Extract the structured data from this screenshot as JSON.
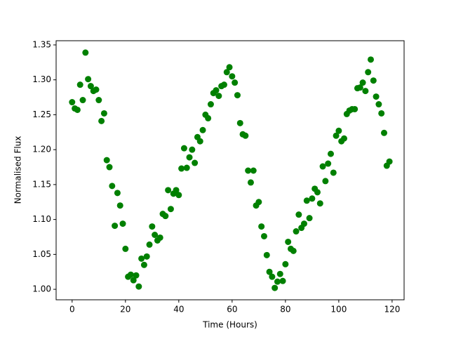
{
  "chart_data": {
    "type": "scatter",
    "xlabel": "Time (Hours)",
    "ylabel": "Normalised Flux",
    "color": "#008000",
    "xlim": [
      -6,
      124.5
    ],
    "ylim": [
      0.985,
      1.356
    ],
    "xticks": [
      0,
      20,
      40,
      60,
      80,
      100,
      120
    ],
    "yticks": [
      {
        "value": 1.0,
        "label": "1.00"
      },
      {
        "value": 1.05,
        "label": "1.05"
      },
      {
        "value": 1.1,
        "label": "1.10"
      },
      {
        "value": 1.15,
        "label": "1.15"
      },
      {
        "value": 1.2,
        "label": "1.20"
      },
      {
        "value": 1.25,
        "label": "1.25"
      },
      {
        "value": 1.3,
        "label": "1.30"
      },
      {
        "value": 1.35,
        "label": "1.35"
      }
    ],
    "x": [
      0,
      1,
      2,
      3,
      4,
      5,
      6,
      7,
      8,
      9,
      10,
      11,
      12,
      13,
      14,
      15,
      16,
      17,
      18,
      19,
      20,
      21,
      22,
      23,
      24,
      25,
      26,
      27,
      28,
      29,
      30,
      31,
      32,
      33,
      34,
      35,
      36,
      37,
      38,
      39,
      40,
      41,
      42,
      43,
      44,
      45,
      46,
      47,
      48,
      49,
      50,
      51,
      52,
      53,
      54,
      55,
      56,
      57,
      58,
      59,
      60,
      61,
      62,
      63,
      64,
      65,
      66,
      67,
      68,
      69,
      70,
      71,
      72,
      73,
      74,
      75,
      76,
      77,
      78,
      79,
      80,
      81,
      82,
      83,
      84,
      85,
      86,
      87,
      88,
      89,
      90,
      91,
      92,
      93,
      94,
      95,
      96,
      97,
      98,
      99,
      100,
      101,
      102,
      103,
      104,
      105,
      106,
      107,
      108,
      109,
      110,
      111,
      112,
      113,
      114,
      115,
      116,
      117,
      118,
      119
    ],
    "values": [
      1.268,
      1.259,
      1.257,
      1.293,
      1.271,
      1.339,
      1.301,
      1.291,
      1.284,
      1.286,
      1.271,
      1.241,
      1.252,
      1.185,
      1.175,
      1.148,
      1.091,
      1.138,
      1.12,
      1.094,
      1.058,
      1.018,
      1.021,
      1.013,
      1.02,
      1.004,
      1.044,
      1.035,
      1.047,
      1.064,
      1.09,
      1.078,
      1.07,
      1.074,
      1.108,
      1.105,
      1.142,
      1.115,
      1.137,
      1.142,
      1.135,
      1.173,
      1.202,
      1.174,
      1.189,
      1.2,
      1.181,
      1.218,
      1.212,
      1.228,
      1.25,
      1.245,
      1.265,
      1.281,
      1.285,
      1.277,
      1.291,
      1.293,
      1.311,
      1.318,
      1.305,
      1.296,
      1.278,
      1.238,
      1.222,
      1.22,
      1.17,
      1.153,
      1.17,
      1.12,
      1.125,
      1.09,
      1.076,
      1.049,
      1.025,
      1.018,
      1.002,
      1.011,
      1.022,
      1.012,
      1.036,
      1.068,
      1.058,
      1.055,
      1.083,
      1.107,
      1.088,
      1.094,
      1.127,
      1.102,
      1.13,
      1.144,
      1.139,
      1.123,
      1.176,
      1.155,
      1.18,
      1.194,
      1.167,
      1.22,
      1.227,
      1.212,
      1.216,
      1.251,
      1.256,
      1.258,
      1.258,
      1.288,
      1.289,
      1.296,
      1.284,
      1.311,
      1.329,
      1.299,
      1.276,
      1.265,
      1.252,
      1.224,
      1.177,
      1.183
    ]
  }
}
